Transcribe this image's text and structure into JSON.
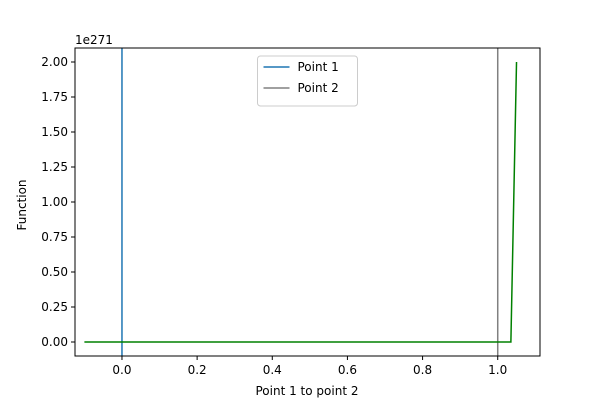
{
  "chart_data": {
    "type": "line",
    "title": "",
    "xlabel": "Point 1 to point 2",
    "ylabel": "Function",
    "y_offset_label": "1e271",
    "xlim": [
      -0.125,
      1.1125
    ],
    "ylim": [
      -0.1,
      2.1
    ],
    "x_ticks": [
      0.0,
      0.2,
      0.4,
      0.6,
      0.8,
      1.0
    ],
    "x_tick_labels": [
      "0.0",
      "0.2",
      "0.4",
      "0.6",
      "0.8",
      "1.0"
    ],
    "y_ticks": [
      0.0,
      0.25,
      0.5,
      0.75,
      1.0,
      1.25,
      1.5,
      1.75,
      2.0
    ],
    "y_tick_labels": [
      "0.00",
      "0.25",
      "0.50",
      "0.75",
      "1.00",
      "1.25",
      "1.50",
      "1.75",
      "2.00"
    ],
    "grid": false,
    "legend_placement": "upper center",
    "series": [
      {
        "kind": "line",
        "color": "#008000",
        "x": [
          -0.1,
          0.0,
          0.2,
          0.4,
          0.6,
          0.8,
          1.0,
          1.035,
          1.05
        ],
        "y": [
          0.0,
          0.0,
          0.0,
          0.0,
          0.0,
          0.0,
          0.0,
          0.0,
          2.0
        ]
      },
      {
        "kind": "vline",
        "name": "Point 1",
        "x": 0.0,
        "color": "#1f77b4"
      },
      {
        "kind": "vline",
        "name": "Point 2",
        "x": 1.0,
        "color": "#808080"
      }
    ]
  }
}
